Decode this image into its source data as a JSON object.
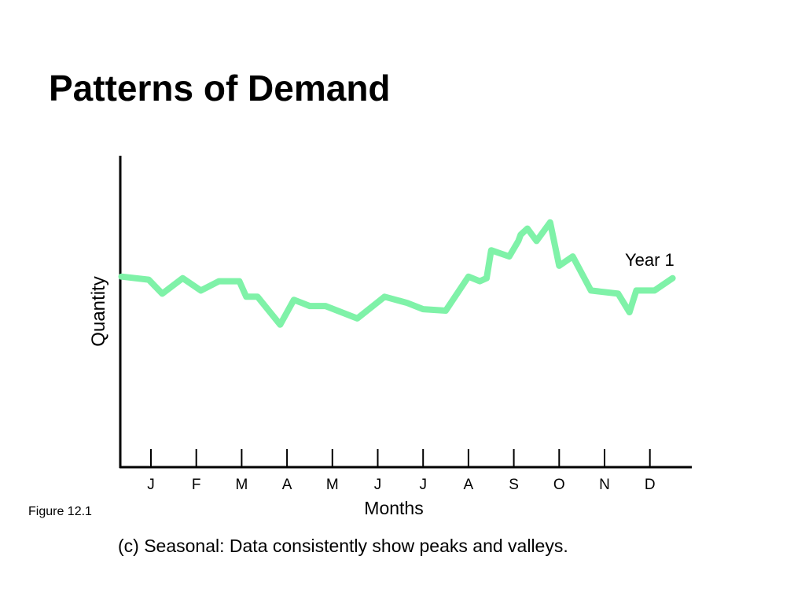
{
  "slide": {
    "title": "Patterns of Demand",
    "figure_label": "Figure 12.1",
    "caption": "(c) Seasonal: Data consistently show peaks and valleys."
  },
  "colors": {
    "line": "#7ff2a8",
    "axis": "#000000"
  },
  "chart_data": {
    "type": "line",
    "title": "",
    "xlabel": "Months",
    "ylabel": "Quantity",
    "categories": [
      "J",
      "F",
      "M",
      "A",
      "M",
      "J",
      "J",
      "A",
      "S",
      "O",
      "N",
      "D"
    ],
    "xlim": [
      -0.65,
      12.0
    ],
    "ylim": [
      0,
      100
    ],
    "grid": false,
    "series": [
      {
        "name": "Year 1",
        "x": [
          -0.65,
          -0.05,
          0.25,
          0.7,
          1.1,
          1.5,
          1.95,
          2.1,
          2.35,
          2.85,
          3.15,
          3.5,
          3.85,
          4.55,
          5.15,
          5.65,
          6.0,
          6.5,
          7.0,
          7.25,
          7.4,
          7.5,
          7.9,
          8.1,
          8.15,
          8.3,
          8.5,
          8.8,
          9.0,
          9.3,
          9.7,
          10.3,
          10.55,
          10.7,
          11.1,
          11.5
        ],
        "y": [
          61.5,
          60.5,
          56,
          61,
          57,
          60,
          60,
          55,
          55,
          46,
          54,
          52,
          52,
          48,
          55,
          53,
          51,
          50.5,
          61.5,
          60,
          61,
          70,
          68,
          73,
          75,
          77,
          73,
          79,
          65,
          68,
          57,
          56,
          50,
          57,
          57,
          61
        ]
      }
    ],
    "annotations": [
      {
        "text": "Year 1",
        "x": 10.45,
        "y": 65
      }
    ]
  }
}
